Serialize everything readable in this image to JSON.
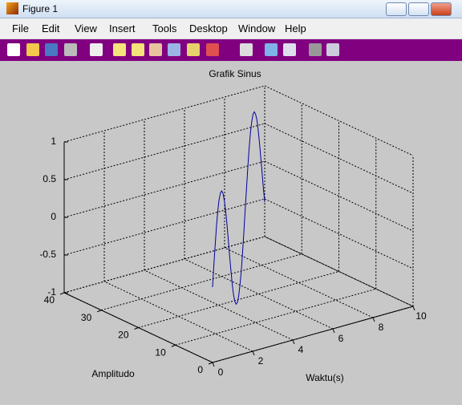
{
  "window": {
    "title": "Figure 1",
    "menu": [
      "File",
      "Edit",
      "View",
      "Insert",
      "Tools",
      "Desktop",
      "Window",
      "Help"
    ]
  },
  "chart_data": {
    "type": "line3d",
    "title": "Grafik Sinus",
    "x_label": "Waktu(s)",
    "y_label": "Amplitudo",
    "color": "#00009c",
    "grid": true,
    "x": [
      0,
      0.25,
      0.5,
      0.75,
      1,
      1.25,
      1.5,
      1.75,
      2,
      2.25,
      2.5,
      2.75,
      3,
      3.25,
      3.5,
      3.75,
      4,
      4.25,
      4.5,
      4.75,
      5,
      5.25,
      5.5,
      5.75,
      6,
      6.25,
      6.5,
      6.75,
      7,
      7.25,
      7.5,
      7.75,
      8,
      8.25,
      8.5,
      8.75,
      9,
      9.25,
      9.5,
      9.75,
      10
    ],
    "y": [
      0,
      1,
      2,
      3,
      4,
      5,
      6,
      7,
      8,
      9,
      10,
      11,
      12,
      13,
      14,
      15,
      16,
      17,
      18,
      19,
      20,
      21,
      22,
      23,
      24,
      25,
      26,
      27,
      28,
      29,
      30,
      31,
      32,
      33,
      34,
      35,
      36,
      37,
      38,
      39,
      40
    ],
    "z": [
      0,
      0.247,
      0.479,
      0.682,
      0.841,
      0.949,
      0.997,
      0.984,
      0.909,
      0.778,
      0.598,
      0.382,
      0.141,
      -0.108,
      -0.351,
      -0.572,
      -0.757,
      -0.895,
      -0.978,
      -0.999,
      -0.959,
      -0.859,
      -0.706,
      -0.508,
      -0.279,
      -0.033,
      0.215,
      0.451,
      0.657,
      0.823,
      0.938,
      0.996,
      0.989,
      0.917,
      0.798,
      0.62,
      0.412,
      0.174,
      -0.075,
      -0.319,
      -0.544
    ],
    "xlim": [
      0,
      10
    ],
    "xticks": [
      0,
      2,
      4,
      6,
      8,
      10
    ],
    "ylim": [
      0,
      40
    ],
    "yticks": [
      0,
      10,
      20,
      30,
      40
    ],
    "zlim": [
      -1,
      1
    ],
    "zticks": [
      -1,
      -0.5,
      0,
      0.5,
      1
    ]
  }
}
